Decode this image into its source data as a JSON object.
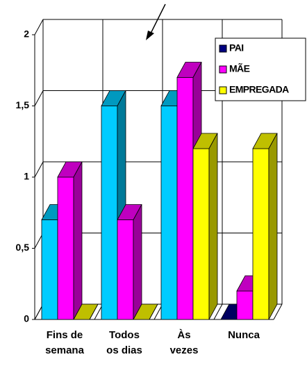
{
  "chart_data": {
    "type": "bar3d",
    "categories": [
      "Fins de semana",
      "Todos os dias",
      "Às vezes",
      "Nunca"
    ],
    "series": [
      {
        "name": "PAI",
        "color": "#000080",
        "point_colors": [
          "#00ccff",
          "#00ccff",
          "#00ccff",
          "#000080"
        ],
        "values": [
          0.7,
          1.5,
          1.5,
          0
        ]
      },
      {
        "name": "MÃE",
        "color": "#ff00ff",
        "values": [
          1,
          0.7,
          1.7,
          0.2
        ]
      },
      {
        "name": "EMPREGADA",
        "color": "#ffff00",
        "values": [
          0,
          0,
          1.2,
          1.2
        ]
      }
    ],
    "ylim": [
      0,
      2
    ],
    "yticks": [
      0,
      {
        "value": 0.5,
        "label": "0,5"
      },
      1,
      {
        "value": 1.5,
        "label": "1,5"
      },
      2
    ],
    "grid": true,
    "legend": "top-right"
  }
}
